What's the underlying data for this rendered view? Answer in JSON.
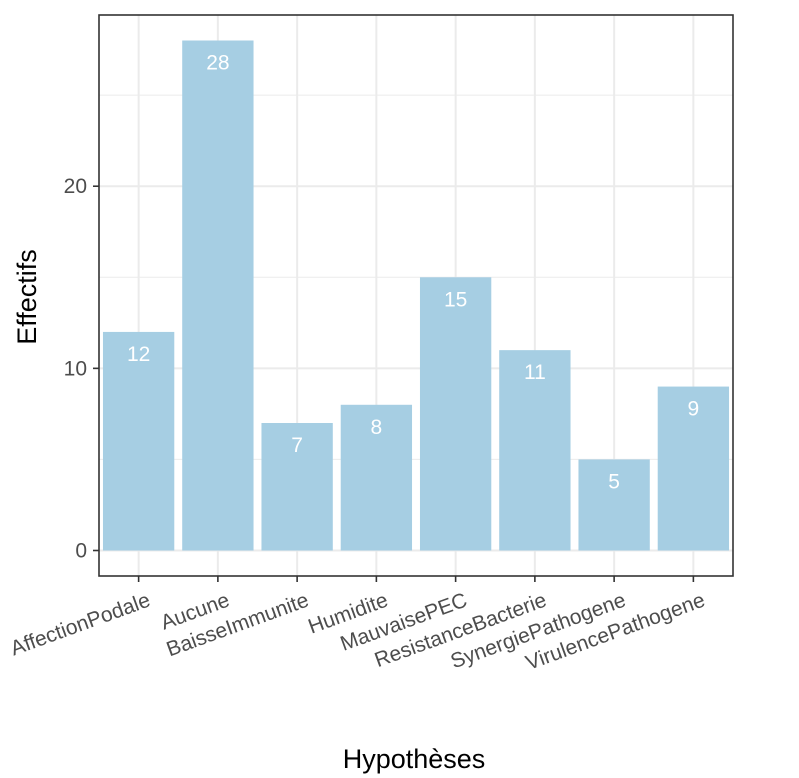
{
  "chart_data": {
    "type": "bar",
    "categories": [
      "AffectionPodale",
      "Aucune",
      "BaisseImmunite",
      "Humidite",
      "MauvaisePEC",
      "ResistanceBacterie",
      "SynergiePathogene",
      "VirulencePathogene"
    ],
    "values": [
      12,
      28,
      7,
      8,
      15,
      11,
      5,
      9
    ],
    "title": "",
    "xlabel": "Hypothèses",
    "ylabel": "Effectifs",
    "ylim": [
      -1.4,
      29.4
    ],
    "yticks": [
      0,
      10,
      20
    ],
    "grid": true,
    "bar_color": "#a6cee3",
    "data_label_color": "#ffffff",
    "panel_border_color": "#333333",
    "grid_color": "#ebebeb"
  }
}
